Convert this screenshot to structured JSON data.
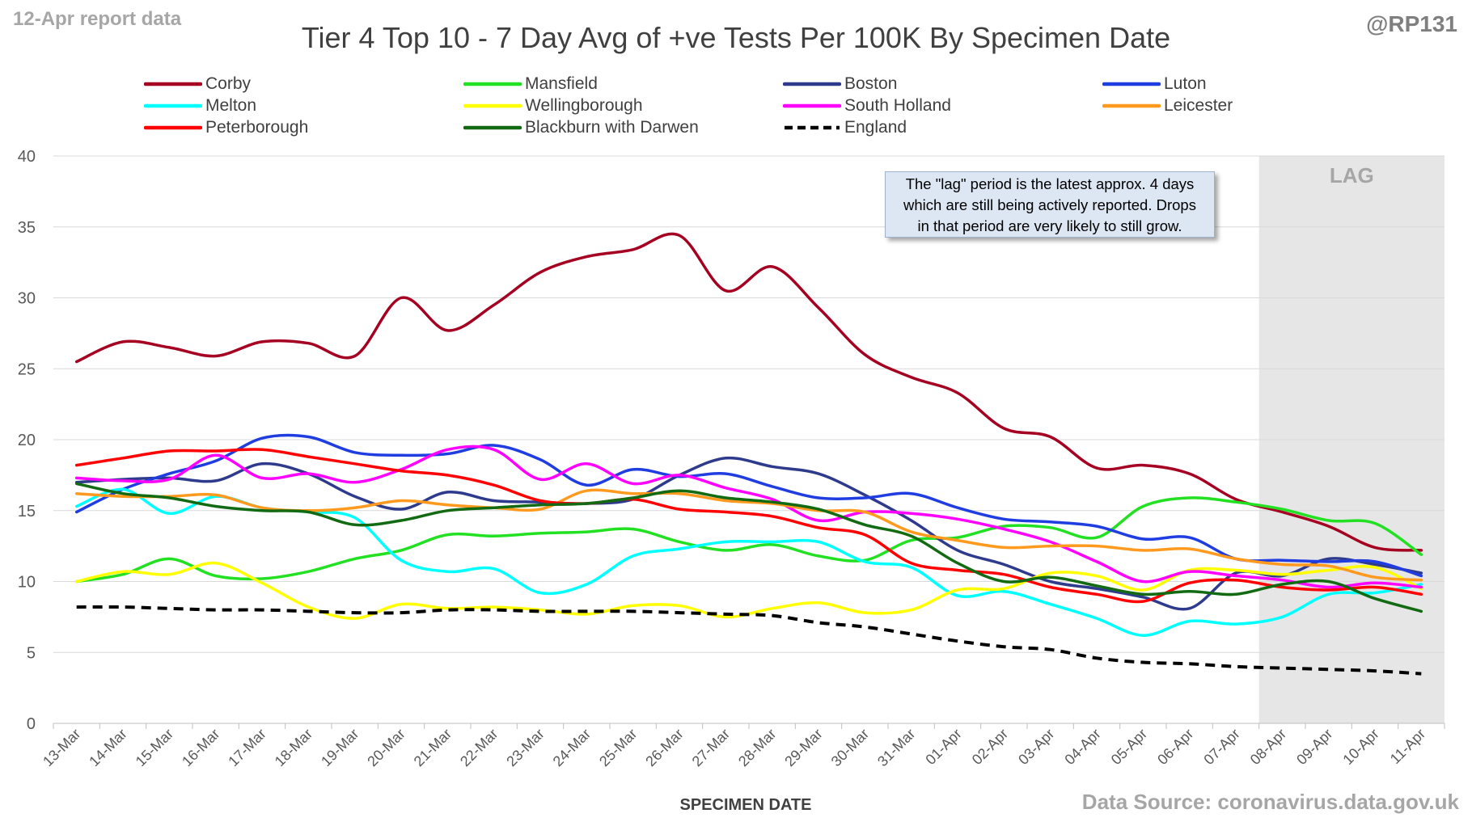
{
  "header": {
    "report_date": "12-Apr report data",
    "handle": "@RP131",
    "source": "Data Source: coronavirus.data.gov.uk"
  },
  "note": {
    "lines": [
      "The \"lag\" period is the latest approx. 4 days",
      "which are still being actively reported.  Drops",
      "in that period are very likely to still grow."
    ]
  },
  "chart_data": {
    "type": "line",
    "title": "Tier 4 Top 10 - 7 Day Avg of +ve Tests Per 100K By Specimen Date",
    "xlabel": "SPECIMEN DATE",
    "ylabel": "",
    "ylim": [
      0,
      40
    ],
    "yticks": [
      0,
      5,
      10,
      15,
      20,
      25,
      30,
      35,
      40
    ],
    "gridlines": "horizontal",
    "legend_position": "top",
    "lag_region": {
      "label": "LAG",
      "from": "08-Apr",
      "to": "11-Apr",
      "color": "#e6e6e6"
    },
    "categories": [
      "13-Mar",
      "14-Mar",
      "15-Mar",
      "16-Mar",
      "17-Mar",
      "18-Mar",
      "19-Mar",
      "20-Mar",
      "21-Mar",
      "22-Mar",
      "23-Mar",
      "24-Mar",
      "25-Mar",
      "26-Mar",
      "27-Mar",
      "28-Mar",
      "29-Mar",
      "30-Mar",
      "31-Mar",
      "01-Apr",
      "02-Apr",
      "03-Apr",
      "04-Apr",
      "05-Apr",
      "06-Apr",
      "07-Apr",
      "08-Apr",
      "09-Apr",
      "10-Apr",
      "11-Apr"
    ],
    "series": [
      {
        "name": "Corby",
        "color": "#a50021",
        "dash": false,
        "values": [
          25.5,
          26.9,
          26.5,
          25.9,
          26.9,
          26.8,
          25.9,
          30.0,
          27.7,
          29.5,
          31.8,
          32.9,
          33.4,
          34.4,
          30.5,
          32.2,
          29.3,
          26.0,
          24.4,
          23.3,
          20.8,
          20.2,
          18.0,
          18.2,
          17.6,
          15.8,
          14.9,
          13.9,
          12.4,
          12.2
        ]
      },
      {
        "name": "Mansfield",
        "color": "#22e022",
        "dash": false,
        "values": [
          10.0,
          10.5,
          11.6,
          10.4,
          10.2,
          10.7,
          11.6,
          12.2,
          13.3,
          13.2,
          13.4,
          13.5,
          13.7,
          12.8,
          12.2,
          12.6,
          11.8,
          11.5,
          12.9,
          13.1,
          13.9,
          13.8,
          13.1,
          15.3,
          15.9,
          15.6,
          15.1,
          14.3,
          14.1,
          11.9
        ]
      },
      {
        "name": "Boston",
        "color": "#2e3a8c",
        "dash": false,
        "values": [
          17.0,
          17.2,
          17.3,
          17.1,
          18.3,
          17.6,
          16.0,
          15.1,
          16.3,
          15.7,
          15.6,
          15.5,
          15.8,
          17.5,
          18.7,
          18.1,
          17.6,
          16.1,
          14.3,
          12.2,
          11.2,
          10.0,
          9.5,
          8.9,
          8.1,
          10.6,
          10.4,
          11.6,
          11.2,
          10.6
        ]
      },
      {
        "name": "Luton",
        "color": "#1f3de0",
        "dash": false,
        "values": [
          14.9,
          16.5,
          17.6,
          18.5,
          20.1,
          20.2,
          19.1,
          18.9,
          19.0,
          19.6,
          18.6,
          16.8,
          17.9,
          17.4,
          17.6,
          16.7,
          15.9,
          15.9,
          16.2,
          15.2,
          14.4,
          14.2,
          13.9,
          13.0,
          13.1,
          11.6,
          11.5,
          11.4,
          11.4,
          10.4
        ]
      },
      {
        "name": "Melton",
        "color": "#00ffff",
        "dash": false,
        "values": [
          15.3,
          16.5,
          14.8,
          16.0,
          15.2,
          14.9,
          14.5,
          11.5,
          10.7,
          10.9,
          9.2,
          9.8,
          11.8,
          12.3,
          12.8,
          12.8,
          12.8,
          11.4,
          11.0,
          9.0,
          9.3,
          8.4,
          7.4,
          6.2,
          7.2,
          7.0,
          7.5,
          9.1,
          9.2,
          9.8
        ]
      },
      {
        "name": "Wellingborough",
        "color": "#ffff00",
        "dash": false,
        "values": [
          10.0,
          10.7,
          10.5,
          11.3,
          9.9,
          8.2,
          7.4,
          8.4,
          8.1,
          8.2,
          8.0,
          7.7,
          8.3,
          8.3,
          7.5,
          8.1,
          8.5,
          7.8,
          8.0,
          9.4,
          9.5,
          10.6,
          10.4,
          9.4,
          10.8,
          10.8,
          10.5,
          10.8,
          11.0,
          9.5
        ]
      },
      {
        "name": "South Holland",
        "color": "#ff00ff",
        "dash": false,
        "values": [
          17.3,
          17.1,
          17.2,
          18.9,
          17.3,
          17.6,
          17.0,
          17.9,
          19.3,
          19.3,
          17.2,
          18.3,
          16.9,
          17.5,
          16.6,
          15.8,
          14.3,
          14.9,
          14.8,
          14.4,
          13.7,
          12.8,
          11.4,
          10.0,
          10.7,
          10.4,
          10.1,
          9.6,
          9.9,
          9.6
        ]
      },
      {
        "name": "Leicester",
        "color": "#ff9a1f",
        "dash": false,
        "values": [
          16.2,
          16.0,
          16.0,
          16.1,
          15.2,
          15.0,
          15.2,
          15.7,
          15.4,
          15.2,
          15.1,
          16.4,
          16.2,
          16.2,
          15.7,
          15.5,
          15.0,
          14.9,
          13.5,
          12.9,
          12.4,
          12.5,
          12.5,
          12.2,
          12.3,
          11.6,
          11.2,
          11.1,
          10.3,
          10.1
        ]
      },
      {
        "name": "Peterborough",
        "color": "#ff0000",
        "dash": false,
        "values": [
          18.2,
          18.7,
          19.2,
          19.2,
          19.3,
          18.8,
          18.3,
          17.8,
          17.5,
          16.8,
          15.7,
          15.5,
          15.8,
          15.1,
          14.9,
          14.6,
          13.8,
          13.3,
          11.3,
          10.8,
          10.5,
          9.6,
          9.1,
          8.6,
          9.9,
          10.1,
          9.6,
          9.4,
          9.6,
          9.1
        ]
      },
      {
        "name": "Blackburn with Darwen",
        "color": "#126a12",
        "dash": false,
        "values": [
          16.9,
          16.2,
          15.9,
          15.3,
          15.0,
          14.9,
          14.0,
          14.3,
          15.0,
          15.2,
          15.4,
          15.5,
          15.9,
          16.4,
          15.9,
          15.6,
          15.1,
          14.0,
          13.2,
          11.3,
          10.0,
          10.3,
          9.7,
          9.1,
          9.3,
          9.1,
          9.8,
          10.0,
          8.8,
          7.9
        ]
      },
      {
        "name": "England",
        "color": "#000000",
        "dash": true,
        "values": [
          8.2,
          8.2,
          8.1,
          8.0,
          8.0,
          7.9,
          7.8,
          7.8,
          8.0,
          8.0,
          7.9,
          7.9,
          7.9,
          7.8,
          7.7,
          7.6,
          7.1,
          6.8,
          6.3,
          5.8,
          5.4,
          5.2,
          4.6,
          4.3,
          4.2,
          4.0,
          3.9,
          3.8,
          3.7,
          3.5
        ]
      }
    ]
  }
}
